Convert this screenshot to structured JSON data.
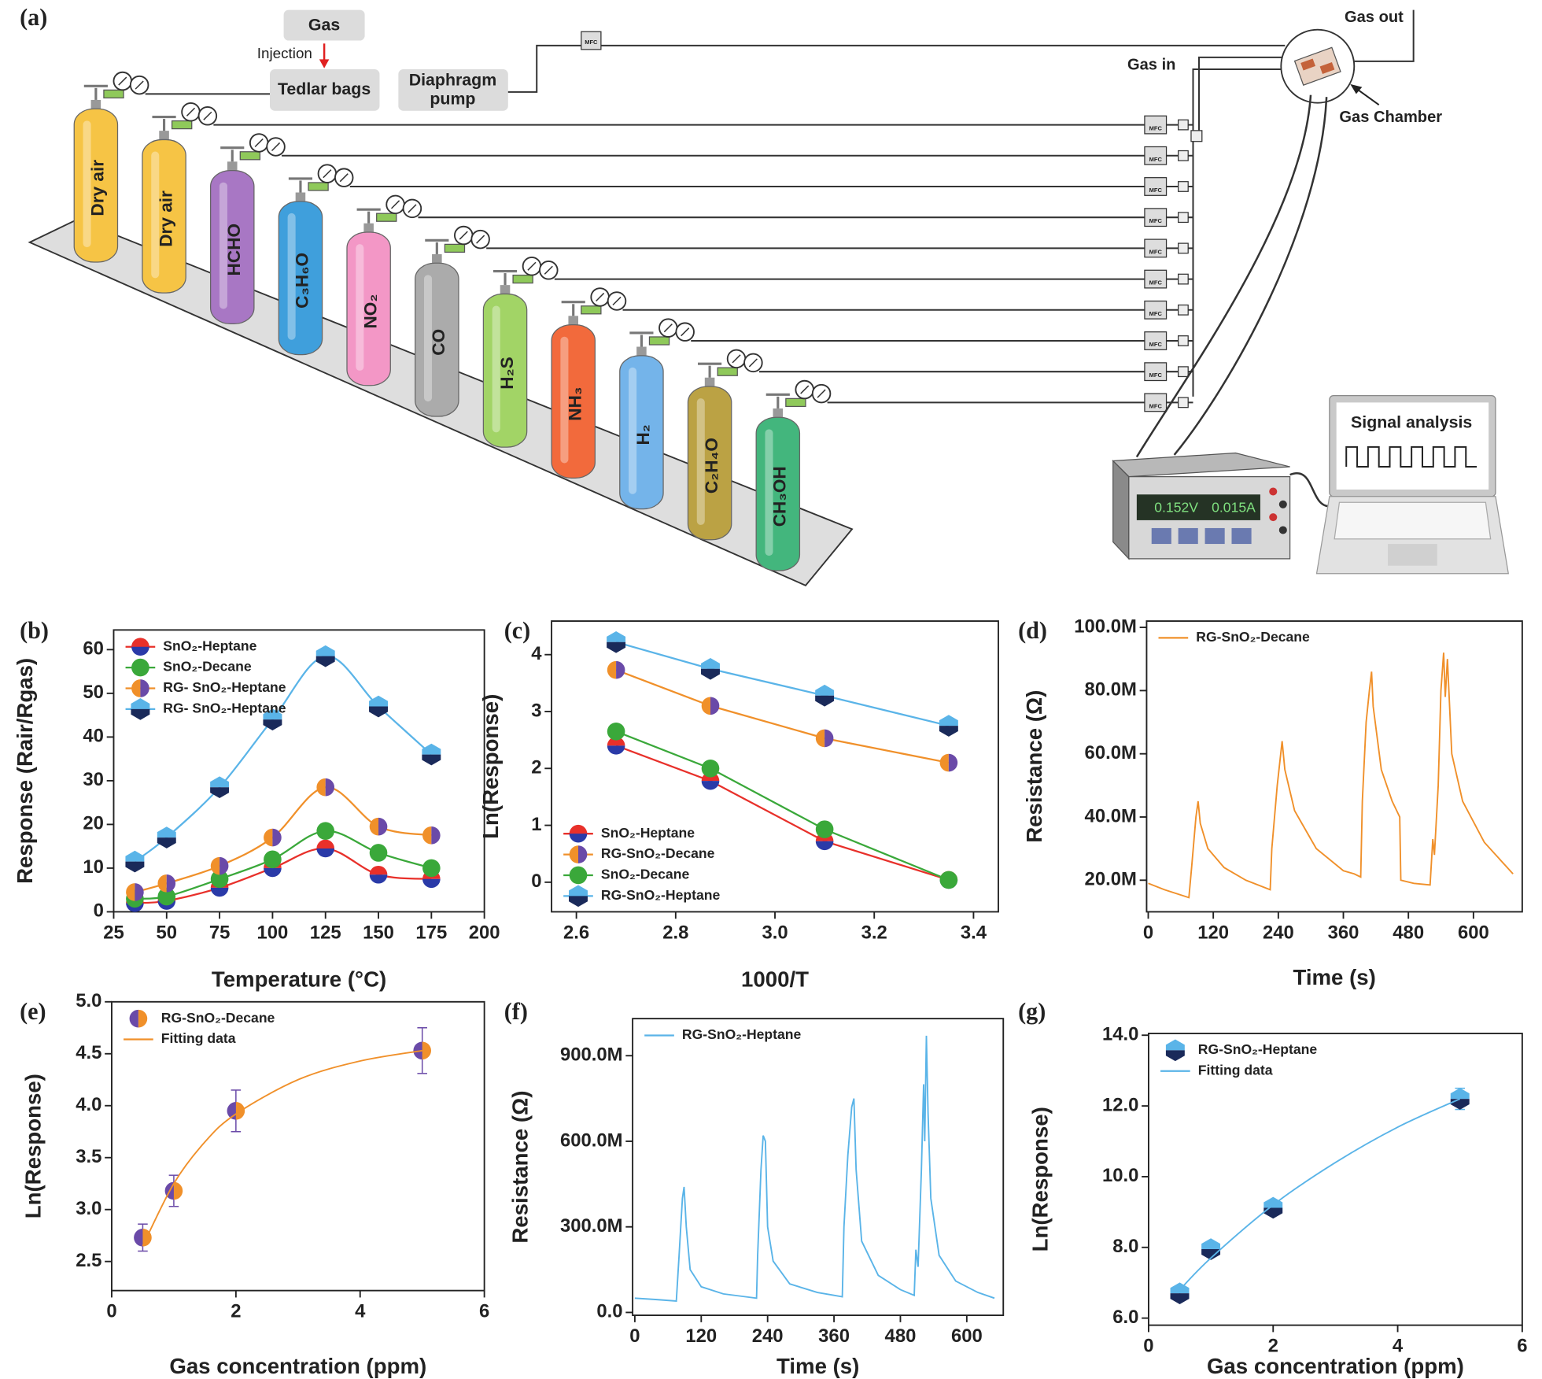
{
  "diagram": {
    "panel_label": "(a)",
    "gas": "Gas",
    "injection": "Injection",
    "tedlar": "Tedlar bags",
    "pump_lines": [
      "Diaphragm",
      "pump"
    ],
    "mfc": "MFC",
    "gas_out": "Gas out",
    "gas_in": "Gas in",
    "chamber": "Gas Chamber",
    "signal": "Signal analysis",
    "voltage": "0.152V",
    "current": "0.015A",
    "cylinders": [
      {
        "label": "Dry air",
        "color": "#f6c445"
      },
      {
        "label": "Dry air",
        "color": "#f6c445"
      },
      {
        "label": "HCHO",
        "color": "#a877c4"
      },
      {
        "label": "C₃H₆O",
        "color": "#3f9fdc"
      },
      {
        "label": "NO₂",
        "color": "#f397c6"
      },
      {
        "label": "CO",
        "color": "#ababab"
      },
      {
        "label": "H₂S",
        "color": "#a2d466"
      },
      {
        "label": "NH₃",
        "color": "#f26a3c"
      },
      {
        "label": "H₂",
        "color": "#74b4ea"
      },
      {
        "label": "C₂H₄O",
        "color": "#bba244"
      },
      {
        "label": "CH₃OH",
        "color": "#43b67d"
      }
    ]
  },
  "chart_data": [
    {
      "type": "line",
      "panel_label": "(b)",
      "xlabel": "Temperature (°C)",
      "ylabel": "Response (Rair/Rgas)",
      "smooth": true,
      "legend": "upper left",
      "xlim": [
        25,
        200
      ],
      "xticks": [
        25,
        50,
        75,
        100,
        125,
        150,
        175,
        200
      ],
      "ylim": [
        0,
        64.5
      ],
      "yticks": [
        0,
        10,
        20,
        30,
        40,
        50,
        60
      ],
      "x": [
        35,
        50,
        75,
        100,
        125,
        150,
        175
      ],
      "series": [
        {
          "name": "SnO₂-Heptane",
          "color": "#e8302a",
          "color2": "#2a3aa8",
          "marker": "circle",
          "split": "horizontal",
          "line": true,
          "values": [
            2,
            2.5,
            5.5,
            10,
            14.5,
            8.5,
            7.5
          ]
        },
        {
          "name": "SnO₂-Decane",
          "color": "#3aa83a",
          "marker": "circle",
          "line": true,
          "values": [
            3,
            3.5,
            7.5,
            12,
            18.5,
            13.5,
            10
          ]
        },
        {
          "name": "RG- SnO₂-Heptane",
          "color": "#f0902a",
          "color2": "#6a4aa8",
          "marker": "circle",
          "split": "vertical",
          "line": true,
          "values": [
            4.5,
            6.5,
            10.5,
            17,
            28.5,
            19.5,
            17.5
          ]
        },
        {
          "name": "RG- SnO₂-Heptane",
          "color": "#5ab4e8",
          "color2": "#1a2a5a",
          "marker": "hexagon",
          "split": "horizontal",
          "line": true,
          "values": [
            11.5,
            17,
            28.5,
            44,
            58.5,
            47,
            36
          ]
        }
      ]
    },
    {
      "type": "line",
      "panel_label": "(c)",
      "xlabel": "1000/T",
      "ylabel": "Ln(Response)",
      "legend": "lower left",
      "xlim": [
        2.55,
        3.45
      ],
      "xticks": [
        2.6,
        2.8,
        {
          "value": 3,
          "label": "3.0"
        },
        3.2,
        3.4
      ],
      "ylim": [
        -0.52,
        4.59
      ],
      "yticks": [
        0,
        1,
        2,
        3,
        4
      ],
      "x": [
        2.68,
        2.87,
        3.1,
        3.35
      ],
      "series": [
        {
          "name": "SnO₂-Heptane",
          "color": "#e8302a",
          "color2": "#2a3aa8",
          "marker": "circle",
          "split": "horizontal",
          "line": true,
          "values": [
            2.4,
            1.78,
            0.72,
            0.04
          ]
        },
        {
          "name": "RG-SnO₂-Decane",
          "color": "#f0902a",
          "color2": "#6a4aa8",
          "marker": "circle",
          "split": "vertical",
          "line": true,
          "values": [
            3.73,
            3.1,
            2.53,
            2.1
          ]
        },
        {
          "name": "SnO₂-Decane",
          "color": "#3aa83a",
          "marker": "circle",
          "line": true,
          "values": [
            2.65,
            2.0,
            0.93,
            0.04
          ]
        },
        {
          "name": "RG-SnO₂-Heptane",
          "color": "#5ab4e8",
          "color2": "#1a2a5a",
          "marker": "hexagon",
          "split": "horizontal",
          "line": true,
          "values": [
            4.22,
            3.75,
            3.28,
            2.75
          ]
        }
      ]
    },
    {
      "type": "line",
      "panel_label": "(d)",
      "xlabel": "Time (s)",
      "ylabel": "Resistance (Ω)",
      "legend": "upper left",
      "xlim": [
        -3,
        690
      ],
      "xticks": [
        0,
        120,
        240,
        360,
        480,
        600
      ],
      "ylim": [
        10000000,
        102000000
      ],
      "yticks": [
        {
          "value": 20000000,
          "label": "20.0M"
        },
        {
          "value": 40000000,
          "label": "40.0M"
        },
        {
          "value": 60000000,
          "label": "60.0M"
        },
        {
          "value": 80000000,
          "label": "80.0M"
        },
        {
          "value": 100000000,
          "label": "100.0M"
        }
      ],
      "series": [
        {
          "name": "RG-SnO₂-Decane",
          "color": "#f0902a",
          "line": true,
          "x": [
            0,
            30,
            75,
            80,
            88,
            92,
            96,
            110,
            140,
            180,
            225,
            228,
            238,
            247,
            252,
            270,
            310,
            360,
            380,
            392,
            395,
            402,
            408,
            412,
            415,
            430,
            450,
            464,
            466,
            490,
            520,
            525,
            528,
            535,
            540,
            545,
            548,
            552,
            560,
            580,
            620,
            673
          ],
          "values": [
            19000000,
            17000000,
            14500000,
            24000000,
            40000000,
            45000000,
            38000000,
            30000000,
            24000000,
            20000000,
            17000000,
            30000000,
            50000000,
            64000000,
            55000000,
            42000000,
            30000000,
            23000000,
            22000000,
            21000000,
            45000000,
            70000000,
            80000000,
            86000000,
            75000000,
            55000000,
            45000000,
            40000000,
            20000000,
            19000000,
            18500000,
            33000000,
            28000000,
            50000000,
            80000000,
            92000000,
            78000000,
            90000000,
            60000000,
            45000000,
            32000000,
            22000000
          ]
        }
      ]
    },
    {
      "type": "scatter",
      "panel_label": "(e)",
      "xlabel": "Gas concentration (ppm)",
      "ylabel": "Ln(Response)",
      "smooth": true,
      "legend": "upper left",
      "xlim": [
        0,
        6
      ],
      "xticks": [
        0,
        2,
        4,
        6
      ],
      "ylim": [
        2.22,
        5.0
      ],
      "yticks": [
        2.5,
        {
          "value": 3,
          "label": "3.0"
        },
        3.5,
        {
          "value": 4,
          "label": "4.0"
        },
        4.5,
        {
          "value": 5,
          "label": "5.0"
        }
      ],
      "x": [
        0.5,
        1,
        2,
        5
      ],
      "series": [
        {
          "name": "RG-SnO₂-Decane",
          "color": "#6a4aa8",
          "color2": "#f0902a",
          "marker": "circle",
          "split": "vertical",
          "values": [
            2.73,
            3.18,
            3.95,
            4.53
          ],
          "errors": [
            0.13,
            0.15,
            0.2,
            0.22
          ]
        },
        {
          "name": "Fitting data",
          "color": "#f0902a",
          "line": true,
          "x": [
            0.5,
            1,
            1.5,
            2,
            3,
            4,
            5
          ],
          "values": [
            2.65,
            3.25,
            3.65,
            3.92,
            4.25,
            4.43,
            4.53
          ]
        }
      ]
    },
    {
      "type": "line",
      "panel_label": "(f)",
      "xlabel": "Time (s)",
      "ylabel": "Resistance (Ω)",
      "legend": "upper left",
      "xlim": [
        -4,
        666
      ],
      "xticks": [
        0,
        120,
        240,
        360,
        480,
        600
      ],
      "ylim": [
        -10000000,
        1030000000
      ],
      "yticks": [
        {
          "value": 0,
          "label": "0.0"
        },
        {
          "value": 300000000,
          "label": "300.0M"
        },
        {
          "value": 600000000,
          "label": "600.0M"
        },
        {
          "value": 900000000,
          "label": "900.0M"
        }
      ],
      "series": [
        {
          "name": "RG-SnO₂-Heptane",
          "color": "#5ab4e8",
          "line": true,
          "x": [
            0,
            40,
            75,
            80,
            86,
            89,
            93,
            100,
            120,
            160,
            200,
            220,
            222,
            228,
            232,
            236,
            240,
            250,
            280,
            330,
            360,
            375,
            378,
            385,
            392,
            396,
            400,
            410,
            440,
            480,
            505,
            508,
            512,
            518,
            522,
            524,
            527,
            530,
            535,
            550,
            580,
            620,
            650
          ],
          "values": [
            50000000,
            45000000,
            40000000,
            200000000,
            400000000,
            440000000,
            300000000,
            150000000,
            90000000,
            65000000,
            55000000,
            50000000,
            200000000,
            500000000,
            620000000,
            600000000,
            300000000,
            180000000,
            100000000,
            70000000,
            60000000,
            55000000,
            300000000,
            550000000,
            720000000,
            750000000,
            500000000,
            250000000,
            130000000,
            80000000,
            60000000,
            220000000,
            160000000,
            500000000,
            800000000,
            600000000,
            970000000,
            700000000,
            400000000,
            200000000,
            110000000,
            70000000,
            50000000
          ]
        }
      ]
    },
    {
      "type": "scatter",
      "panel_label": "(g)",
      "xlabel": "Gas concentration (ppm)",
      "ylabel": "Ln(Response)",
      "smooth": true,
      "legend": "upper left",
      "xlim": [
        0,
        6
      ],
      "xticks": [
        0,
        2,
        4,
        6
      ],
      "ylim": [
        5.8,
        14.05
      ],
      "yticks": [
        {
          "value": 6,
          "label": "6.0"
        },
        {
          "value": 8,
          "label": "8.0"
        },
        {
          "value": 10,
          "label": "10.0"
        },
        {
          "value": 12,
          "label": "12.0"
        },
        {
          "value": 14,
          "label": "14.0"
        }
      ],
      "x": [
        0.5,
        1,
        2,
        5
      ],
      "series": [
        {
          "name": "RG-SnO₂-Heptane",
          "color": "#5ab4e8",
          "color2": "#1a2a5a",
          "marker": "hexagon",
          "split": "horizontal",
          "values": [
            6.7,
            7.95,
            9.12,
            12.2
          ],
          "errors": [
            0.15,
            0.15,
            0.2,
            0.3
          ]
        },
        {
          "name": "Fitting data",
          "color": "#5ab4e8",
          "line": true,
          "x": [
            0.5,
            1,
            2,
            3,
            4,
            5
          ],
          "values": [
            6.8,
            7.7,
            9.2,
            10.4,
            11.4,
            12.2
          ]
        }
      ]
    }
  ]
}
